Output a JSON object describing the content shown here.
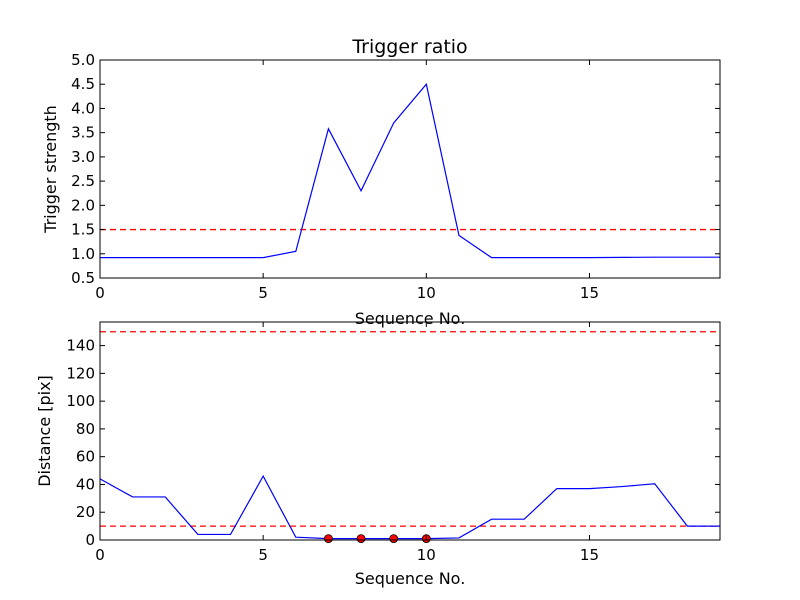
{
  "chart_data": [
    {
      "type": "line",
      "title": "Trigger ratio",
      "xlabel": "Sequence No.",
      "ylabel": "Trigger strength",
      "xlim": [
        0,
        19
      ],
      "ylim": [
        0.5,
        5.0
      ],
      "xticks": [
        0,
        5,
        10,
        15
      ],
      "xtick_labels": [
        "0",
        "5",
        "10",
        "15"
      ],
      "yticks": [
        0.5,
        1.0,
        1.5,
        2.0,
        2.5,
        3.0,
        3.5,
        4.0,
        4.5,
        5.0
      ],
      "ytick_labels": [
        "0.5",
        "1.0",
        "1.5",
        "2.0",
        "2.5",
        "3.0",
        "3.5",
        "4.0",
        "4.5",
        "5.0"
      ],
      "series": [
        {
          "color": "#0000ff",
          "x": [
            0,
            1,
            2,
            3,
            4,
            5,
            6,
            7,
            8,
            9,
            10,
            11,
            12,
            13,
            14,
            15,
            16,
            17,
            18,
            19
          ],
          "y": [
            0.92,
            0.92,
            0.92,
            0.92,
            0.92,
            0.92,
            1.05,
            3.58,
            2.3,
            3.7,
            4.5,
            1.38,
            0.92,
            0.92,
            0.92,
            0.92,
            0.925,
            0.93,
            0.93,
            0.93
          ]
        }
      ],
      "hlines": [
        {
          "y": 1.5,
          "color": "#ff0000",
          "style": "dashed"
        }
      ],
      "grid": false
    },
    {
      "type": "line",
      "title": "",
      "xlabel": "Sequence No.",
      "ylabel": "Distance [pix]",
      "xlim": [
        0,
        19
      ],
      "ylim": [
        0,
        157
      ],
      "xticks": [
        0,
        5,
        10,
        15
      ],
      "xtick_labels": [
        "0",
        "5",
        "10",
        "15"
      ],
      "yticks": [
        0,
        20,
        40,
        60,
        80,
        100,
        120,
        140
      ],
      "ytick_labels": [
        "0",
        "20",
        "40",
        "60",
        "80",
        "100",
        "120",
        "140"
      ],
      "series": [
        {
          "color": "#0000ff",
          "x": [
            0,
            1,
            2,
            3,
            4,
            5,
            6,
            7,
            8,
            9,
            10,
            11,
            12,
            13,
            14,
            15,
            16,
            17,
            18,
            19
          ],
          "y": [
            44,
            31,
            31,
            4,
            4,
            46,
            2,
            1,
            1,
            1,
            1,
            1.5,
            15,
            15,
            37,
            37,
            38.5,
            40.5,
            10,
            10
          ]
        }
      ],
      "markers": [
        {
          "color": "#ff0000",
          "x": [
            7,
            8,
            9,
            10
          ],
          "y": [
            1,
            1,
            1,
            1
          ]
        }
      ],
      "hlines": [
        {
          "y": 150,
          "color": "#ff0000",
          "style": "dashed"
        },
        {
          "y": 10,
          "color": "#ff0000",
          "style": "dashed"
        }
      ],
      "grid": false
    }
  ]
}
